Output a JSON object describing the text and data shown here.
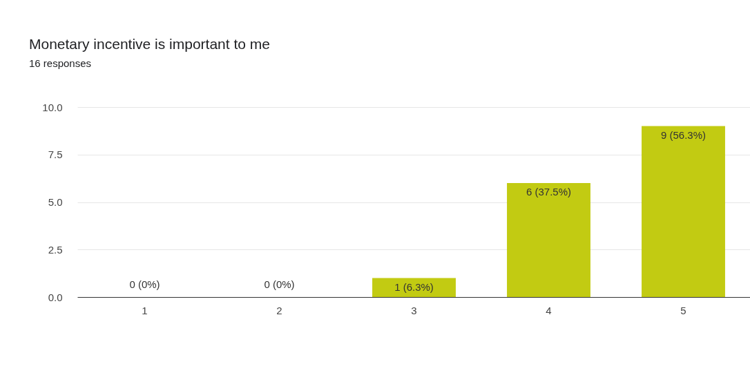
{
  "chart_data": {
    "type": "bar",
    "title": "Monetary incentive is important to me",
    "subtitle": "16 responses",
    "categories": [
      "1",
      "2",
      "3",
      "4",
      "5"
    ],
    "values": [
      0,
      0,
      1,
      6,
      9
    ],
    "value_labels": [
      "0 (0%)",
      "0 (0%)",
      "1 (6.3%)",
      "6 (37.5%)",
      "9 (56.3%)"
    ],
    "color": "#c2cb12",
    "ylim": [
      0,
      10
    ],
    "yticks": [
      {
        "value": 0,
        "label": "0.0"
      },
      {
        "value": 2.5,
        "label": "2.5"
      },
      {
        "value": 5,
        "label": "5.0"
      },
      {
        "value": 7.5,
        "label": "7.5"
      },
      {
        "value": 10,
        "label": "10.0"
      }
    ],
    "grid": "y"
  }
}
